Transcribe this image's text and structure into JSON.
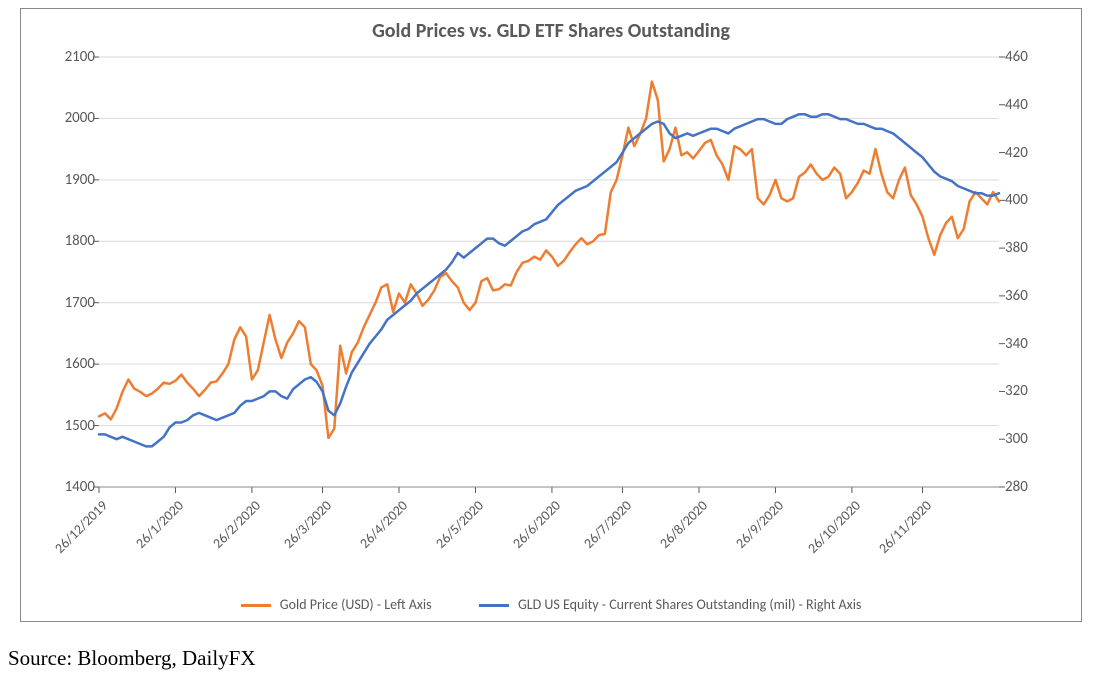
{
  "chart": {
    "type": "line-dual-axis",
    "title": "Gold Prices vs. GLD ETF Shares Outstanding",
    "title_fontsize": 20,
    "title_color": "#595959",
    "background_color": "#ffffff",
    "plot_border_color": "#888888",
    "tick_font_color": "#595959",
    "tick_fontsize": 15,
    "grid": {
      "y": true,
      "color": "#d9d9d9",
      "width": 1
    },
    "y_left": {
      "min": 1400,
      "max": 2100,
      "step": 100,
      "ticks": [
        1400,
        1500,
        1600,
        1700,
        1800,
        1900,
        2000,
        2100
      ]
    },
    "y_right": {
      "min": 280,
      "max": 460,
      "step": 20,
      "ticks": [
        280,
        300,
        320,
        340,
        360,
        380,
        400,
        420,
        440,
        460
      ]
    },
    "x": {
      "labels": [
        "26/12/2019",
        "26/1/2020",
        "26/2/2020",
        "26/3/2020",
        "26/4/2020",
        "26/5/2020",
        "26/6/2020",
        "26/7/2020",
        "26/8/2020",
        "26/9/2020",
        "26/10/2020",
        "26/11/2020"
      ],
      "rotation_deg": -45,
      "label_fontsize": 14
    },
    "series": [
      {
        "name": "Gold Price (USD) - Left Axis",
        "axis": "left",
        "color": "#ed7d31",
        "line_width": 2.5,
        "yvals": [
          1515,
          1520,
          1510,
          1528,
          1555,
          1575,
          1560,
          1555,
          1548,
          1552,
          1560,
          1570,
          1568,
          1573,
          1583,
          1570,
          1560,
          1548,
          1558,
          1570,
          1572,
          1585,
          1600,
          1640,
          1660,
          1645,
          1575,
          1590,
          1635,
          1680,
          1640,
          1610,
          1635,
          1650,
          1670,
          1660,
          1600,
          1590,
          1565,
          1480,
          1495,
          1630,
          1585,
          1620,
          1635,
          1660,
          1680,
          1700,
          1725,
          1730,
          1685,
          1715,
          1700,
          1730,
          1715,
          1695,
          1705,
          1720,
          1742,
          1748,
          1735,
          1725,
          1700,
          1688,
          1700,
          1735,
          1740,
          1720,
          1722,
          1730,
          1728,
          1750,
          1765,
          1768,
          1775,
          1770,
          1785,
          1775,
          1760,
          1768,
          1782,
          1795,
          1805,
          1795,
          1800,
          1810,
          1812,
          1880,
          1900,
          1940,
          1985,
          1955,
          1975,
          2000,
          2060,
          2030,
          1930,
          1950,
          1985,
          1940,
          1945,
          1935,
          1947,
          1960,
          1965,
          1940,
          1925,
          1900,
          1955,
          1950,
          1940,
          1950,
          1870,
          1860,
          1875,
          1900,
          1870,
          1865,
          1870,
          1905,
          1912,
          1925,
          1910,
          1900,
          1905,
          1920,
          1910,
          1870,
          1880,
          1895,
          1915,
          1910,
          1950,
          1910,
          1880,
          1870,
          1900,
          1920,
          1875,
          1860,
          1840,
          1805,
          1778,
          1810,
          1830,
          1840,
          1805,
          1820,
          1865,
          1880,
          1870,
          1860,
          1880,
          1865
        ]
      },
      {
        "name": "GLD US Equity - Current Shares Outstanding (mil) - Right Axis",
        "axis": "right",
        "color": "#4472c4",
        "line_width": 2.5,
        "yvals": [
          302,
          302,
          301,
          300,
          301,
          300,
          299,
          298,
          297,
          297,
          299,
          301,
          305,
          307,
          307,
          308,
          310,
          311,
          310,
          309,
          308,
          309,
          310,
          311,
          314,
          316,
          316,
          317,
          318,
          320,
          320,
          318,
          317,
          321,
          323,
          325,
          326,
          324,
          320,
          312,
          310,
          315,
          322,
          328,
          332,
          336,
          340,
          343,
          346,
          350,
          352,
          354,
          356,
          358,
          361,
          363,
          365,
          367,
          369,
          371,
          374,
          378,
          376,
          378,
          380,
          382,
          384,
          384,
          382,
          381,
          383,
          385,
          387,
          388,
          390,
          391,
          392,
          395,
          398,
          400,
          402,
          404,
          405,
          406,
          408,
          410,
          412,
          414,
          416,
          420,
          424,
          426,
          428,
          430,
          432,
          433,
          432,
          428,
          426,
          427,
          428,
          427,
          428,
          429,
          430,
          430,
          429,
          428,
          430,
          431,
          432,
          433,
          434,
          434,
          433,
          432,
          432,
          434,
          435,
          436,
          436,
          435,
          435,
          436,
          436,
          435,
          434,
          434,
          433,
          432,
          432,
          431,
          430,
          430,
          429,
          428,
          426,
          424,
          422,
          420,
          418,
          415,
          412,
          410,
          409,
          408,
          406,
          405,
          404,
          403,
          403,
          402,
          402,
          403
        ]
      }
    ],
    "legend": {
      "position": "bottom",
      "fontsize": 14
    }
  },
  "source": "Source: Bloomberg, DailyFX"
}
